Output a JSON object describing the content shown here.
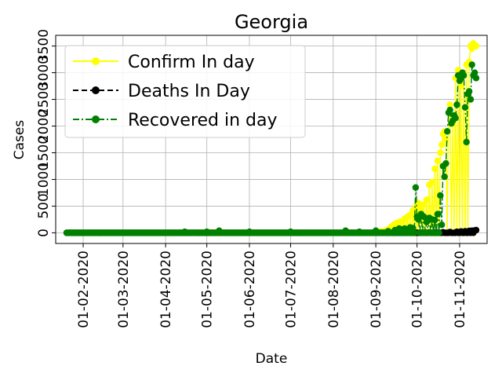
{
  "chart_data": {
    "type": "line",
    "title": "Georgia",
    "xlabel": "Date",
    "ylabel": "Cases",
    "x_start": "2020-01-20",
    "x_end": "2020-11-13",
    "xlim": [
      "2020-01-12",
      "2020-11-21"
    ],
    "ylim": [
      -200,
      3700
    ],
    "grid": true,
    "legend_position": "top-left",
    "x_ticks": [
      "01-02-2020",
      "01-03-2020",
      "01-04-2020",
      "01-05-2020",
      "01-06-2020",
      "01-07-2020",
      "01-08-2020",
      "01-09-2020",
      "01-10-2020",
      "01-11-2020"
    ],
    "y_ticks": [
      "0",
      "500",
      "1000",
      "1500",
      "2000",
      "2500",
      "3000",
      "3500"
    ],
    "series": [
      {
        "name": "Confirm In day",
        "color": "#ffff00",
        "line_style": "solid",
        "marker": "circle",
        "points": [
          [
            "2020-09-01",
            20
          ],
          [
            "2020-09-05",
            30
          ],
          [
            "2020-09-08",
            40
          ],
          [
            "2020-09-10",
            60
          ],
          [
            "2020-09-12",
            110
          ],
          [
            "2020-09-14",
            150
          ],
          [
            "2020-09-16",
            180
          ],
          [
            "2020-09-18",
            200
          ],
          [
            "2020-09-20",
            220
          ],
          [
            "2020-09-22",
            260
          ],
          [
            "2020-09-24",
            300
          ],
          [
            "2020-09-26",
            330
          ],
          [
            "2020-09-28",
            420
          ],
          [
            "2020-09-30",
            480
          ],
          [
            "2020-10-02",
            560
          ],
          [
            "2020-10-04",
            470
          ],
          [
            "2020-10-06",
            530
          ],
          [
            "2020-10-08",
            620
          ],
          [
            "2020-10-10",
            900
          ],
          [
            "2020-10-12",
            950
          ],
          [
            "2020-10-14",
            1200
          ],
          [
            "2020-10-16",
            1350
          ],
          [
            "2020-10-18",
            1500
          ],
          [
            "2020-10-19",
            1650
          ],
          [
            "2020-10-20",
            1850
          ],
          [
            "2020-10-21",
            1900
          ],
          [
            "2020-10-22",
            1750
          ],
          [
            "2020-10-24",
            2250
          ],
          [
            "2020-10-25",
            2400
          ],
          [
            "2020-10-27",
            2050
          ],
          [
            "2020-10-29",
            2900
          ],
          [
            "2020-10-31",
            3050
          ],
          [
            "2020-11-02",
            2750
          ],
          [
            "2020-11-04",
            3000
          ],
          [
            "2020-11-06",
            3150
          ],
          [
            "2020-11-08",
            3200
          ],
          [
            "2020-11-09",
            3500
          ],
          [
            "2020-11-10",
            3450
          ],
          [
            "2020-11-11",
            3550
          ],
          [
            "2020-11-12",
            3500
          ],
          [
            "2020-11-13",
            3500
          ]
        ]
      },
      {
        "name": "Deaths In Day",
        "color": "#000000",
        "line_style": "dashed",
        "marker": "circle",
        "points": [
          [
            "2020-09-25",
            0
          ],
          [
            "2020-10-01",
            2
          ],
          [
            "2020-10-05",
            3
          ],
          [
            "2020-10-10",
            5
          ],
          [
            "2020-10-15",
            8
          ],
          [
            "2020-10-20",
            10
          ],
          [
            "2020-10-25",
            15
          ],
          [
            "2020-10-30",
            20
          ],
          [
            "2020-11-02",
            25
          ],
          [
            "2020-11-05",
            30
          ],
          [
            "2020-11-08",
            35
          ],
          [
            "2020-11-10",
            40
          ],
          [
            "2020-11-12",
            45
          ],
          [
            "2020-11-13",
            50
          ]
        ]
      },
      {
        "name": "Recovered in day",
        "color": "#008000",
        "line_style": "dashdot",
        "marker": "circle",
        "points": [
          [
            "2020-04-15",
            20
          ],
          [
            "2020-05-01",
            20
          ],
          [
            "2020-05-10",
            40
          ],
          [
            "2020-06-01",
            20
          ],
          [
            "2020-07-01",
            20
          ],
          [
            "2020-08-10",
            40
          ],
          [
            "2020-08-20",
            20
          ],
          [
            "2020-09-01",
            40
          ],
          [
            "2020-09-10",
            30
          ],
          [
            "2020-09-15",
            50
          ],
          [
            "2020-09-18",
            80
          ],
          [
            "2020-09-20",
            60
          ],
          [
            "2020-09-22",
            80
          ],
          [
            "2020-09-24",
            50
          ],
          [
            "2020-09-26",
            100
          ],
          [
            "2020-09-28",
            90
          ],
          [
            "2020-09-30",
            850
          ],
          [
            "2020-10-01",
            300
          ],
          [
            "2020-10-02",
            250
          ],
          [
            "2020-10-04",
            350
          ],
          [
            "2020-10-06",
            300
          ],
          [
            "2020-10-08",
            200
          ],
          [
            "2020-10-10",
            280
          ],
          [
            "2020-10-12",
            250
          ],
          [
            "2020-10-14",
            240
          ],
          [
            "2020-10-16",
            350
          ],
          [
            "2020-10-18",
            700
          ],
          [
            "2020-10-19",
            150
          ],
          [
            "2020-10-20",
            1250
          ],
          [
            "2020-10-21",
            1050
          ],
          [
            "2020-10-22",
            1300
          ],
          [
            "2020-10-23",
            1900
          ],
          [
            "2020-10-24",
            2250
          ],
          [
            "2020-10-25",
            2300
          ],
          [
            "2020-10-26",
            2050
          ],
          [
            "2020-10-27",
            2100
          ],
          [
            "2020-10-28",
            2200
          ],
          [
            "2020-10-29",
            2150
          ],
          [
            "2020-10-30",
            2400
          ],
          [
            "2020-10-31",
            2950
          ],
          [
            "2020-11-01",
            2850
          ],
          [
            "2020-11-02",
            2900
          ],
          [
            "2020-11-03",
            3000
          ],
          [
            "2020-11-04",
            2950
          ],
          [
            "2020-11-05",
            2350
          ],
          [
            "2020-11-06",
            1700
          ],
          [
            "2020-11-07",
            2600
          ],
          [
            "2020-11-08",
            2650
          ],
          [
            "2020-11-09",
            2500
          ],
          [
            "2020-11-10",
            3150
          ],
          [
            "2020-11-11",
            2950
          ],
          [
            "2020-11-12",
            3000
          ],
          [
            "2020-11-13",
            2900
          ]
        ]
      }
    ]
  }
}
